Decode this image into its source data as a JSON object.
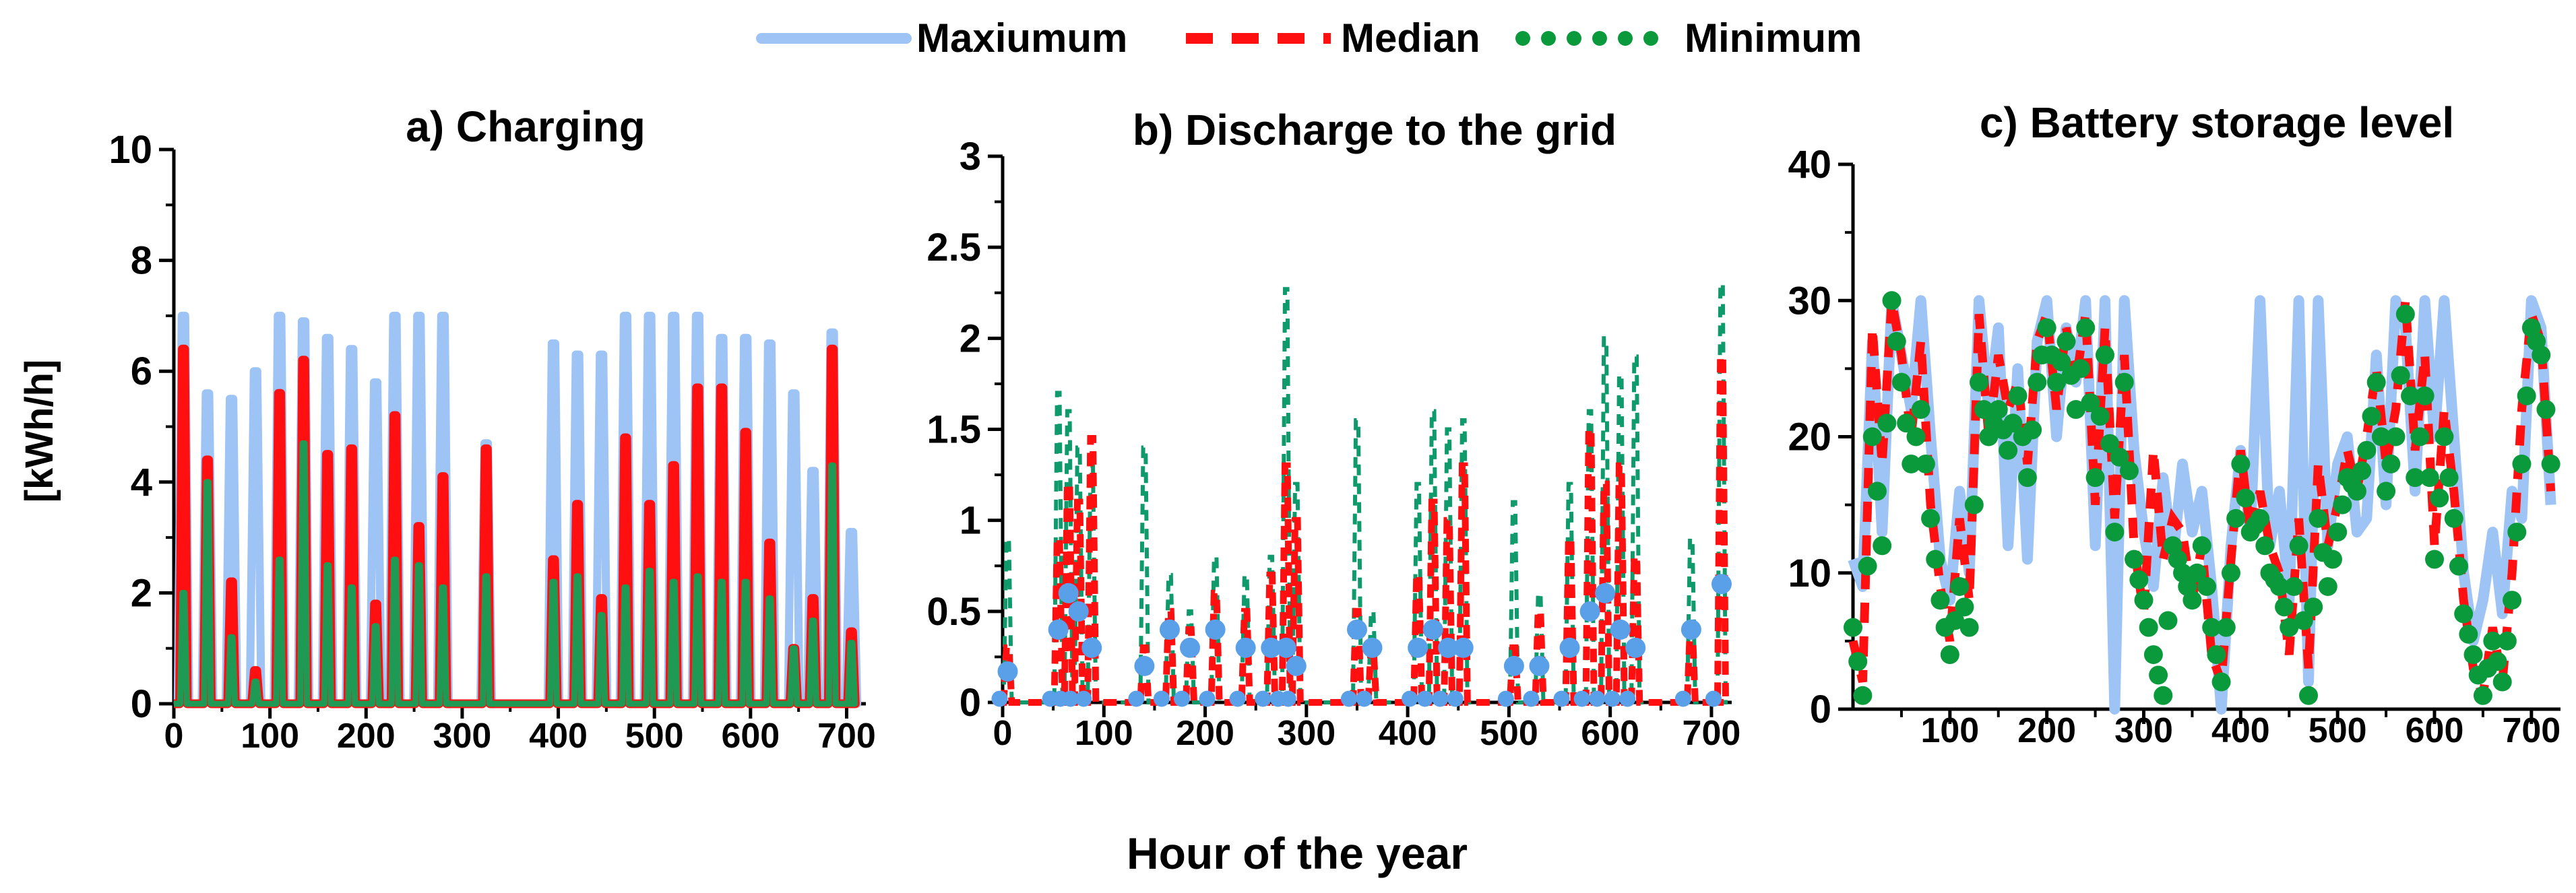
{
  "figure": {
    "x_axis_label": "Hour of the year",
    "y_axis_label": "[kWh/h]"
  },
  "legend": [
    {
      "name": "Maxiumum",
      "color": "#9ec3f5",
      "style": "solid"
    },
    {
      "name": "Median",
      "color": "#ff0f0f",
      "style": "dashed"
    },
    {
      "name": "Minimum",
      "color": "#0a9a3c",
      "style": "dotted"
    }
  ],
  "chart_data": [
    {
      "type": "line",
      "title": "a) Charging",
      "xlabel": "Hour of the year",
      "ylabel": "[kWh/h]",
      "xlim": [
        0,
        720
      ],
      "ylim": [
        0,
        10
      ],
      "xticks": [
        0,
        100,
        200,
        300,
        400,
        500,
        600,
        700
      ],
      "yticks": [
        0,
        2,
        4,
        6,
        8,
        10
      ],
      "peaks": {
        "x": [
          10,
          35,
          60,
          85,
          110,
          135,
          160,
          185,
          210,
          230,
          255,
          280,
          325,
          395,
          420,
          445,
          470,
          495,
          520,
          545,
          570,
          595,
          620,
          645,
          665,
          685,
          705
        ],
        "max": [
          7.0,
          5.6,
          5.5,
          6.0,
          7.0,
          6.9,
          6.6,
          6.4,
          5.8,
          7.0,
          7.0,
          7.0,
          4.7,
          6.5,
          6.3,
          6.3,
          7.0,
          7.0,
          7.0,
          7.0,
          6.6,
          6.6,
          6.5,
          5.6,
          4.2,
          6.7,
          3.1
        ],
        "median": [
          6.4,
          4.4,
          2.2,
          0.6,
          5.6,
          6.2,
          4.5,
          4.6,
          1.8,
          5.2,
          3.2,
          4.1,
          4.6,
          2.6,
          3.6,
          1.9,
          4.8,
          3.6,
          4.3,
          5.7,
          5.7,
          4.9,
          2.9,
          1.0,
          1.9,
          6.4,
          1.3
        ],
        "minimum": [
          2.0,
          4.0,
          1.2,
          0.4,
          2.6,
          4.7,
          2.5,
          2.1,
          1.4,
          2.6,
          2.5,
          2.1,
          2.3,
          2.2,
          2.3,
          1.6,
          2.1,
          2.4,
          2.2,
          2.3,
          2.2,
          2.2,
          1.9,
          1.0,
          1.5,
          4.3,
          1.1
        ]
      }
    },
    {
      "type": "line",
      "title": "b) Discharge to the grid",
      "xlabel": "Hour of the year",
      "ylabel": "[kWh/h]",
      "xlim": [
        0,
        720
      ],
      "ylim": [
        0,
        3
      ],
      "xticks": [
        0,
        100,
        200,
        300,
        400,
        500,
        600,
        700
      ],
      "yticks": [
        0,
        0.5,
        1,
        1.5,
        2,
        2.5,
        3
      ],
      "yticklabels": [
        "0",
        "0.5",
        "1",
        "1.5",
        "2",
        "2.5",
        "3"
      ],
      "peaks": {
        "x": [
          5,
          55,
          65,
          75,
          88,
          140,
          165,
          185,
          210,
          240,
          265,
          280,
          290,
          350,
          365,
          410,
          425,
          440,
          455,
          505,
          530,
          560,
          580,
          595,
          610,
          625,
          680,
          710
        ],
        "max": [
          0.17,
          0.4,
          0.6,
          0.5,
          0.3,
          0.2,
          0.4,
          0.3,
          0.4,
          0.3,
          0.3,
          0.3,
          0.2,
          0.4,
          0.3,
          0.3,
          0.4,
          0.3,
          0.3,
          0.2,
          0.2,
          0.3,
          0.5,
          0.6,
          0.4,
          0.3,
          0.4,
          0.65
        ],
        "median": [
          0.3,
          0.9,
          1.2,
          1.1,
          1.45,
          0.3,
          0.5,
          0.4,
          0.6,
          0.5,
          0.7,
          1.3,
          1.0,
          0.5,
          0.3,
          0.7,
          1.1,
          1.0,
          1.3,
          0.3,
          0.5,
          0.9,
          1.5,
          1.2,
          1.3,
          0.8,
          0.4,
          1.9
        ],
        "minimum": [
          0.9,
          1.7,
          1.6,
          1.4,
          1.3,
          1.4,
          0.7,
          0.5,
          0.8,
          0.7,
          0.8,
          2.27,
          1.2,
          1.55,
          0.5,
          1.2,
          1.6,
          1.5,
          1.55,
          1.1,
          0.6,
          1.2,
          1.6,
          2.0,
          1.8,
          1.9,
          0.9,
          2.3
        ]
      }
    },
    {
      "type": "line",
      "title": "c) Battery storage level",
      "xlabel": "Hour of the year",
      "ylabel": "",
      "xlim": [
        0,
        730
      ],
      "ylim": [
        0,
        40
      ],
      "xticks": [
        100,
        200,
        300,
        400,
        500,
        600,
        700
      ],
      "yticks": [
        0,
        10,
        20,
        30,
        40
      ],
      "series": [
        {
          "name": "Maxiumum",
          "x": [
            0,
            10,
            20,
            30,
            40,
            50,
            60,
            70,
            80,
            90,
            100,
            110,
            120,
            130,
            140,
            150,
            160,
            170,
            180,
            190,
            200,
            210,
            220,
            230,
            240,
            250,
            260,
            270,
            280,
            290,
            300,
            310,
            320,
            330,
            340,
            350,
            360,
            370,
            380,
            390,
            400,
            410,
            420,
            430,
            440,
            450,
            460,
            470,
            480,
            490,
            500,
            510,
            520,
            530,
            540,
            550,
            560,
            570,
            580,
            590,
            600,
            610,
            620,
            630,
            640,
            650,
            660,
            670,
            680,
            690,
            700,
            710,
            720
          ],
          "y": [
            11,
            9,
            27,
            13,
            30,
            26,
            22,
            30,
            20,
            11,
            8,
            16,
            10,
            30,
            22,
            28,
            12,
            25,
            11,
            27,
            30,
            20,
            28,
            24,
            30,
            12,
            30,
            0,
            30,
            19,
            13,
            9,
            17,
            11,
            18,
            13,
            16,
            9,
            0,
            12,
            19,
            13,
            30,
            12,
            16,
            8,
            30,
            2,
            30,
            12,
            18,
            20,
            13,
            14,
            26,
            15,
            30,
            28,
            16,
            30,
            20,
            30,
            20,
            10,
            5,
            8,
            13,
            7,
            16,
            14,
            30,
            28,
            15
          ]
        },
        {
          "name": "Median",
          "x": [
            0,
            10,
            20,
            30,
            40,
            50,
            60,
            70,
            80,
            90,
            100,
            110,
            120,
            130,
            140,
            150,
            160,
            170,
            180,
            190,
            200,
            210,
            220,
            230,
            240,
            250,
            260,
            270,
            280,
            290,
            300,
            310,
            320,
            330,
            340,
            350,
            360,
            370,
            380,
            390,
            400,
            410,
            420,
            430,
            440,
            450,
            460,
            470,
            480,
            490,
            500,
            510,
            520,
            530,
            540,
            550,
            560,
            570,
            580,
            590,
            600,
            610,
            620,
            630,
            640,
            650,
            660,
            670,
            680,
            690,
            700,
            710,
            720
          ],
          "y": [
            5,
            2,
            28,
            18,
            30,
            26,
            20,
            27,
            15,
            9,
            5,
            14,
            8,
            29,
            20,
            26,
            22,
            24,
            18,
            27,
            29,
            22,
            28,
            24,
            29,
            15,
            28,
            14,
            26,
            12,
            7,
            19,
            11,
            14,
            13,
            8,
            12,
            4,
            2,
            11,
            19,
            13,
            16,
            12,
            10,
            4,
            14,
            3,
            18,
            12,
            15,
            19,
            16,
            20,
            25,
            18,
            22,
            30,
            19,
            26,
            12,
            22,
            16,
            8,
            3,
            1,
            6,
            2,
            10,
            22,
            29,
            27,
            16
          ]
        },
        {
          "name": "Minimum",
          "x": [
            0,
            10,
            20,
            30,
            40,
            50,
            60,
            70,
            80,
            90,
            100,
            110,
            120,
            130,
            140,
            150,
            160,
            170,
            180,
            190,
            200,
            210,
            220,
            230,
            240,
            250,
            260,
            270,
            280,
            290,
            300,
            310,
            320,
            330,
            340,
            350,
            360,
            370,
            380,
            390,
            400,
            410,
            420,
            430,
            440,
            450,
            460,
            470,
            480,
            490,
            500,
            510,
            520,
            530,
            540,
            550,
            560,
            570,
            580,
            590,
            600,
            610,
            620,
            630,
            640,
            650,
            660,
            670,
            680,
            690,
            700,
            710,
            720
          ],
          "y": [
            6,
            1,
            20,
            12,
            30,
            24,
            18,
            22,
            14,
            8,
            4,
            9,
            6,
            24,
            20,
            22,
            19,
            23,
            17,
            24,
            28,
            24,
            27,
            22,
            28,
            17,
            26,
            13,
            24,
            11,
            8,
            4,
            1,
            12,
            10,
            8,
            12,
            6,
            2,
            10,
            18,
            13,
            14,
            10,
            9,
            6,
            12,
            1,
            14,
            9,
            13,
            17,
            16,
            19,
            24,
            16,
            20,
            29,
            17,
            23,
            11,
            20,
            14,
            7,
            4,
            1,
            5,
            2,
            8,
            18,
            28,
            26,
            18
          ]
        }
      ]
    }
  ]
}
